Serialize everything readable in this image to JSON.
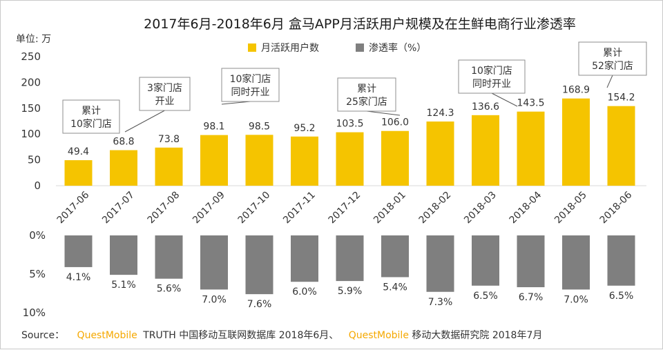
{
  "chart_data": {
    "type": "bar",
    "title": "2017年6月-2018年6月 盒马APP月活跃用户规模及在生鲜电商行业渗透率",
    "categories": [
      "2017-06",
      "2017-07",
      "2017-08",
      "2017-09",
      "2017-10",
      "2017-11",
      "2017-12",
      "2018-01",
      "2018-02",
      "2018-03",
      "2018-04",
      "2018-05",
      "2018-06"
    ],
    "top": {
      "series_name": "月活跃用户数",
      "unit_label": "单位: 万",
      "ylim": [
        0,
        250
      ],
      "ticks": [
        "0",
        "50",
        "100",
        "150",
        "200",
        "250"
      ],
      "values": [
        49.4,
        68.8,
        73.8,
        98.1,
        98.5,
        95.2,
        103.5,
        106.0,
        124.3,
        136.6,
        143.5,
        168.9,
        154.2
      ],
      "labels": [
        "49.4",
        "68.8",
        "73.8",
        "98.1",
        "98.5",
        "95.2",
        "103.5",
        "106.0",
        "124.3",
        "136.6",
        "143.5",
        "168.9",
        "154.2"
      ],
      "color": "#F5C400"
    },
    "bottom": {
      "series_name": "渗透率（%）",
      "ylim": [
        0,
        10
      ],
      "ticks": [
        "0%",
        "5%",
        "10%"
      ],
      "values": [
        4.1,
        5.1,
        5.6,
        7.0,
        7.6,
        6.0,
        5.9,
        5.4,
        7.3,
        6.5,
        6.7,
        7.0,
        6.5
      ],
      "labels": [
        "4.1%",
        "5.1%",
        "5.6%",
        "7.0%",
        "7.6%",
        "6.0%",
        "5.9%",
        "5.4%",
        "7.3%",
        "6.5%",
        "6.7%",
        "7.0%",
        "6.5%"
      ],
      "color": "#7F7F7F"
    },
    "annotations": [
      {
        "lines": [
          "累计",
          "10家门店"
        ],
        "category_index": 0
      },
      {
        "lines": [
          "3家门店",
          "开业"
        ],
        "category_index": 1
      },
      {
        "lines": [
          "10家门店",
          "同时开业"
        ],
        "category_index": 3
      },
      {
        "lines": [
          "累计",
          "25家门店"
        ],
        "category_index": 7
      },
      {
        "lines": [
          "10家门店",
          "同时开业"
        ],
        "category_index": 10
      },
      {
        "lines": [
          "累计",
          "52家门店"
        ],
        "category_index": 12
      }
    ]
  },
  "source": {
    "prefix": "Source：",
    "brand": "QuestMobile",
    "part1": "TRUTH 中国移动互联网数据库 2018年6月、",
    "part2": "移动大数据研究院 2018年7月",
    "brand_color": "#F5A800"
  }
}
